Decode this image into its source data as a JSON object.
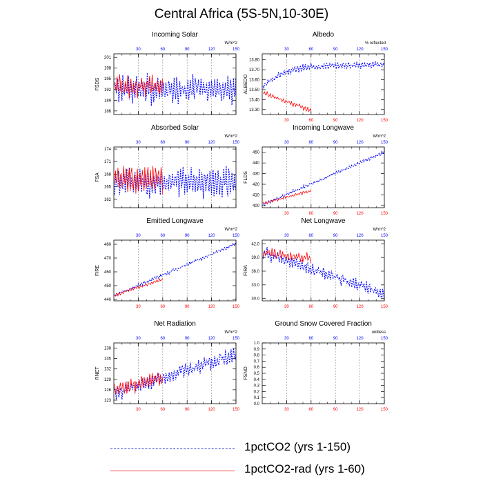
{
  "title": "Central Africa (5S-5N,10-30E)",
  "legend": [
    {
      "label": "1pctCO2 (yrs 1-150)",
      "color": "#2f3cc8",
      "style": "dashed"
    },
    {
      "label": "1pctCO2-rad (yrs 1-60)",
      "color": "#e8413b",
      "style": "solid"
    }
  ],
  "colors": {
    "series_long": "#0000ff",
    "series_short": "#ff0000",
    "top_ticks": "#0000ff",
    "bottom_ticks": "#ff0000",
    "gridline": "#999999"
  },
  "chart_data": [
    {
      "type": "line",
      "title": "Incoming Solar",
      "units": "W/m^2",
      "ylabel": "FSDS",
      "ylim": [
        185,
        202
      ],
      "yticks": [
        "186",
        "189",
        "192",
        "195",
        "198",
        "201"
      ],
      "xlim": [
        0,
        150
      ],
      "xticks_top": [
        "30",
        "60",
        "90",
        "120",
        "150"
      ],
      "xticks_bottom": [],
      "series": [
        {
          "name": "",
          "length": 150,
          "start": 192,
          "trend": 0.0,
          "amp": 3.5,
          "noise": 1.5,
          "seed": 1
        },
        {
          "name": "",
          "length": 60,
          "start": 193,
          "trend": 0.0,
          "amp": 3.0,
          "noise": 1.5,
          "seed": 2
        }
      ]
    },
    {
      "type": "line",
      "title": "Albedo",
      "units": "% reflected",
      "ylabel": "ALBEDO",
      "ylim": [
        13.25,
        13.86
      ],
      "yticks": [
        "13.30",
        "13.40",
        "13.50",
        "13.60",
        "13.70",
        "13.80"
      ],
      "xlim": [
        0,
        150
      ],
      "xticks_top": [
        "30",
        "60",
        "90",
        "120",
        "150"
      ],
      "xticks_bottom": [
        "30",
        "60",
        "90",
        "120",
        "150"
      ],
      "series": [
        {
          "name": "",
          "length": 150,
          "start": 13.52,
          "trend": 0.0015,
          "amp": 0.03,
          "noise": 0.015,
          "seed": 3,
          "sat": 13.75
        },
        {
          "name": "",
          "length": 60,
          "start": 13.47,
          "trend": -0.0031,
          "amp": 0.02,
          "noise": 0.012,
          "seed": 4
        }
      ]
    },
    {
      "type": "line",
      "title": "Absorbed Solar",
      "units": "W/m^2",
      "ylabel": "FSA",
      "ylim": [
        160,
        174.5
      ],
      "yticks": [
        "162",
        "165",
        "168",
        "171",
        "174"
      ],
      "xlim": [
        0,
        150
      ],
      "xticks_top": [
        "30",
        "60",
        "90",
        "120",
        "150"
      ],
      "xticks_bottom": [],
      "series": [
        {
          "name": "",
          "length": 150,
          "start": 166,
          "trend": 0.0,
          "amp": 3.2,
          "noise": 1.3,
          "seed": 5
        },
        {
          "name": "",
          "length": 60,
          "start": 167,
          "trend": 0.0,
          "amp": 3.0,
          "noise": 1.3,
          "seed": 6
        }
      ]
    },
    {
      "type": "line",
      "title": "Incoming Longwave",
      "units": "W/m^2",
      "ylabel": "FLDS",
      "ylim": [
        398,
        455
      ],
      "yticks": [
        "400",
        "410",
        "420",
        "430",
        "440",
        "450"
      ],
      "xlim": [
        0,
        150
      ],
      "xticks_top": [
        "30",
        "60",
        "90",
        "120",
        "150"
      ],
      "xticks_bottom": [
        "30",
        "60",
        "90",
        "120",
        "150"
      ],
      "series": [
        {
          "name": "",
          "length": 150,
          "start": 401,
          "trend": 0.33,
          "amp": 1.2,
          "noise": 0.8,
          "seed": 7
        },
        {
          "name": "",
          "length": 60,
          "start": 402,
          "trend": 0.2,
          "amp": 1.2,
          "noise": 0.8,
          "seed": 8
        }
      ]
    },
    {
      "type": "line",
      "title": "Emitted Longwave",
      "units": "W/m^2",
      "ylabel": "FIRE",
      "ylim": [
        439,
        483
      ],
      "yticks": [
        "440",
        "450",
        "460",
        "470",
        "480"
      ],
      "xlim": [
        0,
        150
      ],
      "xticks_top": [
        "30",
        "60",
        "90",
        "120",
        "150"
      ],
      "xticks_bottom": [
        "30",
        "60",
        "90",
        "120",
        "150"
      ],
      "series": [
        {
          "name": "",
          "length": 150,
          "start": 443,
          "trend": 0.25,
          "amp": 0.9,
          "noise": 0.6,
          "seed": 9
        },
        {
          "name": "",
          "length": 60,
          "start": 443,
          "trend": 0.2,
          "amp": 0.9,
          "noise": 0.6,
          "seed": 10
        }
      ]
    },
    {
      "type": "line",
      "title": "Net Longwave",
      "units": "W/m^2",
      "ylabel": "FIRA",
      "ylim": [
        29.5,
        42.8
      ],
      "yticks": [
        "30.0",
        "33.0",
        "36.0",
        "39.0",
        "42.0"
      ],
      "xlim": [
        0,
        150
      ],
      "xticks_top": [
        "30",
        "60",
        "90",
        "120",
        "150"
      ],
      "xticks_bottom": [
        "30",
        "60",
        "90",
        "120",
        "150"
      ],
      "series": [
        {
          "name": "",
          "length": 150,
          "start": 40,
          "trend": -0.06,
          "amp": 1.1,
          "noise": 0.6,
          "seed": 11
        },
        {
          "name": "",
          "length": 60,
          "start": 40,
          "trend": -0.02,
          "amp": 1.0,
          "noise": 0.6,
          "seed": 12
        }
      ]
    },
    {
      "type": "line",
      "title": "Net Radiation",
      "units": "W/m^2",
      "ylabel": "RNET",
      "ylim": [
        122,
        139.5
      ],
      "yticks": [
        "123",
        "126",
        "129",
        "132",
        "135",
        "138"
      ],
      "xlim": [
        0,
        150
      ],
      "xticks_top": [
        "30",
        "60",
        "90",
        "120",
        "150"
      ],
      "xticks_bottom": [
        "30",
        "60",
        "90",
        "120",
        "150"
      ],
      "series": [
        {
          "name": "",
          "length": 150,
          "start": 125,
          "trend": 0.075,
          "amp": 1.8,
          "noise": 0.9,
          "seed": 13
        },
        {
          "name": "",
          "length": 60,
          "start": 126,
          "trend": 0.06,
          "amp": 1.8,
          "noise": 0.9,
          "seed": 14
        }
      ]
    },
    {
      "type": "line",
      "title": "Ground Snow Covered Fraction",
      "units": "unitless",
      "ylabel": "FSNO",
      "ylim": [
        0,
        1
      ],
      "yticks": [
        "0.0",
        "0.1",
        "0.2",
        "0.3",
        "0.4",
        "0.5",
        "0.6",
        "0.7",
        "0.8",
        "0.9",
        "1.0"
      ],
      "xlim": [
        0,
        150
      ],
      "xticks_top": [
        "30",
        "60",
        "90",
        "120",
        "150"
      ],
      "xticks_bottom": [
        "30",
        "60",
        "90",
        "120",
        "150"
      ],
      "series": []
    }
  ]
}
